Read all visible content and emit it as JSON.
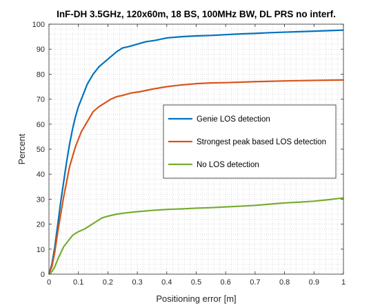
{
  "chart_data": {
    "type": "line",
    "title": "InF-DH 3.5GHz, 120x60m, 18 BS, 100MHz BW, DL PRS no interf.",
    "xlabel": "Positioning error [m]",
    "ylabel": "Percent",
    "xlim": [
      0,
      1
    ],
    "ylim": [
      0,
      100
    ],
    "xticks": [
      0,
      0.1,
      0.2,
      0.3,
      0.4,
      0.5,
      0.6,
      0.7,
      0.8,
      0.9,
      1
    ],
    "xtick_labels": [
      "0",
      "0.1",
      "0.2",
      "0.3",
      "0.4",
      "0.5",
      "0.6",
      "0.7",
      "0.8",
      "0.9",
      "1"
    ],
    "yticks": [
      0,
      10,
      20,
      30,
      40,
      50,
      60,
      70,
      80,
      90,
      100
    ],
    "ytick_labels": [
      "0",
      "10",
      "20",
      "30",
      "40",
      "50",
      "60",
      "70",
      "80",
      "90",
      "100"
    ],
    "grid": "minor-dotted",
    "legend_position": "center-right",
    "series": [
      {
        "name": "Genie LOS detection",
        "color": "#0072BD",
        "x": [
          0,
          0.01,
          0.02,
          0.03,
          0.04,
          0.05,
          0.06,
          0.07,
          0.08,
          0.09,
          0.1,
          0.11,
          0.12,
          0.13,
          0.14,
          0.15,
          0.17,
          0.19,
          0.21,
          0.23,
          0.25,
          0.27,
          0.3,
          0.33,
          0.36,
          0.4,
          0.45,
          0.5,
          0.55,
          0.6,
          0.65,
          0.7,
          0.75,
          0.8,
          0.85,
          0.9,
          0.95,
          1.0
        ],
        "y": [
          0,
          4,
          11,
          20,
          29,
          37,
          45,
          52,
          58,
          63,
          67,
          70,
          73,
          76,
          78,
          80,
          83,
          85,
          87,
          89,
          90.5,
          91,
          92,
          93,
          93.5,
          94.5,
          95,
          95.3,
          95.5,
          95.8,
          96.1,
          96.3,
          96.6,
          96.8,
          97,
          97.2,
          97.4,
          97.6
        ]
      },
      {
        "name": "Strongest peak based LOS detection",
        "color": "#D95319",
        "x": [
          0,
          0.01,
          0.02,
          0.03,
          0.04,
          0.05,
          0.06,
          0.07,
          0.08,
          0.09,
          0.1,
          0.11,
          0.12,
          0.13,
          0.15,
          0.17,
          0.19,
          0.21,
          0.23,
          0.25,
          0.28,
          0.31,
          0.35,
          0.4,
          0.45,
          0.5,
          0.55,
          0.6,
          0.7,
          0.8,
          0.9,
          1.0
        ],
        "y": [
          0,
          3,
          9,
          17,
          24,
          31,
          37,
          43,
          47,
          51,
          54,
          57,
          59,
          61,
          65,
          67,
          68.5,
          70,
          71,
          71.5,
          72.5,
          73,
          74,
          75,
          75.7,
          76.2,
          76.5,
          76.6,
          77,
          77.3,
          77.5,
          77.7
        ]
      },
      {
        "name": "No LOS detection",
        "color": "#77AC30",
        "x": [
          0,
          0.01,
          0.02,
          0.03,
          0.04,
          0.05,
          0.06,
          0.07,
          0.08,
          0.09,
          0.1,
          0.12,
          0.14,
          0.16,
          0.18,
          0.2,
          0.23,
          0.26,
          0.3,
          0.35,
          0.4,
          0.45,
          0.5,
          0.55,
          0.6,
          0.65,
          0.7,
          0.75,
          0.8,
          0.85,
          0.9,
          0.95,
          1.0
        ],
        "y": [
          0,
          1,
          3,
          6,
          8.5,
          11,
          12.5,
          14,
          15.5,
          16.3,
          17,
          18,
          19.5,
          21,
          22.5,
          23.2,
          24,
          24.5,
          25,
          25.5,
          25.9,
          26.1,
          26.4,
          26.6,
          26.9,
          27.2,
          27.5,
          28,
          28.5,
          28.8,
          29.2,
          29.8,
          30.5
        ]
      }
    ]
  }
}
